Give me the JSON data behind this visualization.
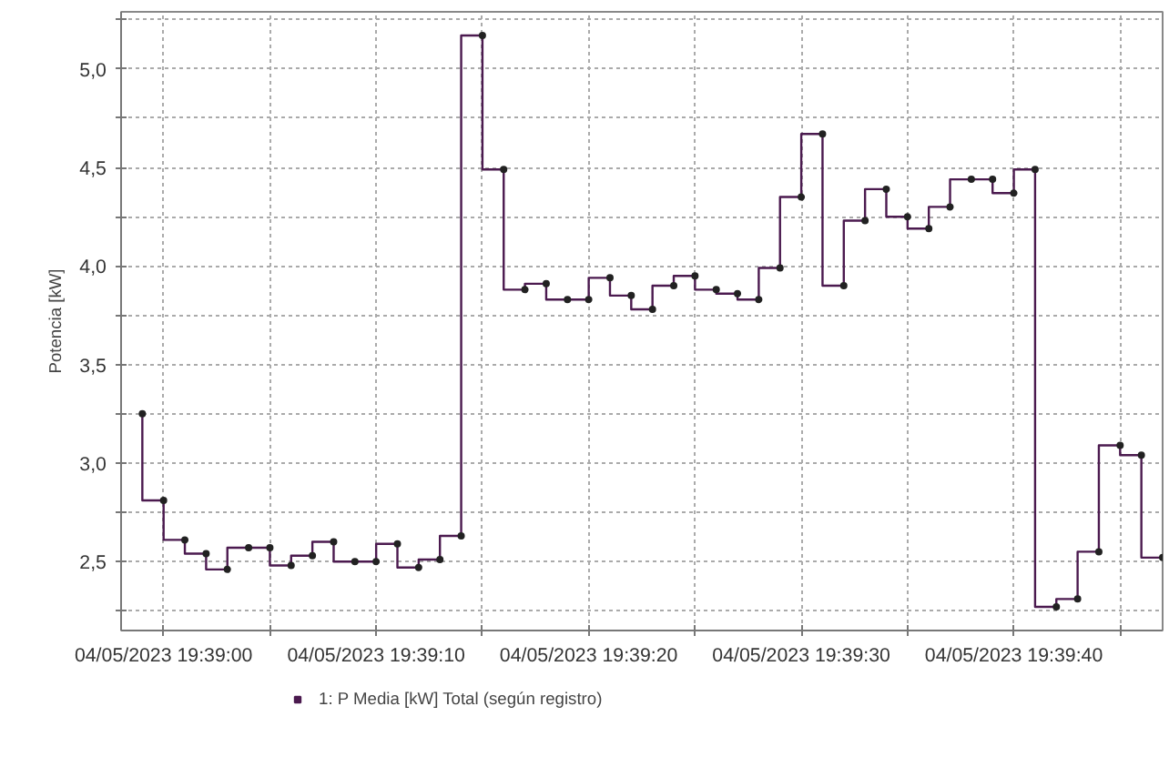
{
  "chart_data": {
    "type": "step",
    "ylabel": "Potencia [kW]",
    "x": [
      "2023-05-04T19:38:59",
      "2023-05-04T19:39:00",
      "2023-05-04T19:39:01",
      "2023-05-04T19:39:02",
      "2023-05-04T19:39:03",
      "2023-05-04T19:39:04",
      "2023-05-04T19:39:05",
      "2023-05-04T19:39:06",
      "2023-05-04T19:39:07",
      "2023-05-04T19:39:08",
      "2023-05-04T19:39:09",
      "2023-05-04T19:39:10",
      "2023-05-04T19:39:11",
      "2023-05-04T19:39:12",
      "2023-05-04T19:39:13",
      "2023-05-04T19:39:14",
      "2023-05-04T19:39:15",
      "2023-05-04T19:39:16",
      "2023-05-04T19:39:17",
      "2023-05-04T19:39:18",
      "2023-05-04T19:39:19",
      "2023-05-04T19:39:20",
      "2023-05-04T19:39:21",
      "2023-05-04T19:39:22",
      "2023-05-04T19:39:23",
      "2023-05-04T19:39:24",
      "2023-05-04T19:39:25",
      "2023-05-04T19:39:26",
      "2023-05-04T19:39:27",
      "2023-05-04T19:39:28",
      "2023-05-04T19:39:29",
      "2023-05-04T19:39:30",
      "2023-05-04T19:39:31",
      "2023-05-04T19:39:32",
      "2023-05-04T19:39:33",
      "2023-05-04T19:39:34",
      "2023-05-04T19:39:35",
      "2023-05-04T19:39:36",
      "2023-05-04T19:39:37",
      "2023-05-04T19:39:38",
      "2023-05-04T19:39:39",
      "2023-05-04T19:39:40",
      "2023-05-04T19:39:41",
      "2023-05-04T19:39:42",
      "2023-05-04T19:39:43",
      "2023-05-04T19:39:44",
      "2023-05-04T19:39:45",
      "2023-05-04T19:39:46",
      "2023-05-04T19:39:47"
    ],
    "series": [
      {
        "name": "1: P Media [kW] Total (según registro)",
        "color": "#4b1a4f",
        "values": [
          3.25,
          2.81,
          2.61,
          2.54,
          2.46,
          2.57,
          2.57,
          2.48,
          2.53,
          2.6,
          2.5,
          2.5,
          2.59,
          2.47,
          2.51,
          2.63,
          5.17,
          4.49,
          3.88,
          3.91,
          3.83,
          3.83,
          3.94,
          3.85,
          3.78,
          3.9,
          3.95,
          3.88,
          3.86,
          3.83,
          3.99,
          4.35,
          4.67,
          3.9,
          4.23,
          4.39,
          4.25,
          4.19,
          4.3,
          4.44,
          4.44,
          4.37,
          4.49,
          2.27,
          2.31,
          2.55,
          3.09,
          3.04,
          2.52
        ]
      }
    ],
    "xlim": [
      "2023-05-04T19:38:58",
      "2023-05-04T19:39:47"
    ],
    "xticks": [
      {
        "value": "2023-05-04T19:39:00",
        "label": "04/05/2023 19:39:00"
      },
      {
        "value": "2023-05-04T19:39:05",
        "label": null
      },
      {
        "value": "2023-05-04T19:39:10",
        "label": "04/05/2023 19:39:10"
      },
      {
        "value": "2023-05-04T19:39:15",
        "label": null
      },
      {
        "value": "2023-05-04T19:39:20",
        "label": "04/05/2023 19:39:20"
      },
      {
        "value": "2023-05-04T19:39:25",
        "label": null
      },
      {
        "value": "2023-05-04T19:39:30",
        "label": "04/05/2023 19:39:30"
      },
      {
        "value": "2023-05-04T19:39:35",
        "label": null
      },
      {
        "value": "2023-05-04T19:39:40",
        "label": "04/05/2023 19:39:40"
      },
      {
        "value": "2023-05-04T19:39:45",
        "label": null
      }
    ],
    "ylim": [
      2.15,
      5.29
    ],
    "yticks": [
      {
        "value": 2.25,
        "label": null
      },
      {
        "value": 2.5,
        "label": "2,5"
      },
      {
        "value": 2.75,
        "label": null
      },
      {
        "value": 3.0,
        "label": "3,0"
      },
      {
        "value": 3.25,
        "label": null
      },
      {
        "value": 3.5,
        "label": "3,5"
      },
      {
        "value": 3.75,
        "label": null
      },
      {
        "value": 4.0,
        "label": "4,0"
      },
      {
        "value": 4.25,
        "label": null
      },
      {
        "value": 4.5,
        "label": "4,5"
      },
      {
        "value": 4.75,
        "label": null
      },
      {
        "value": 5.0,
        "label": "5,0"
      },
      {
        "value": 5.25,
        "label": null
      }
    ],
    "grid": true,
    "legend": "bottom",
    "marker": "circle",
    "line_style": "solid"
  }
}
